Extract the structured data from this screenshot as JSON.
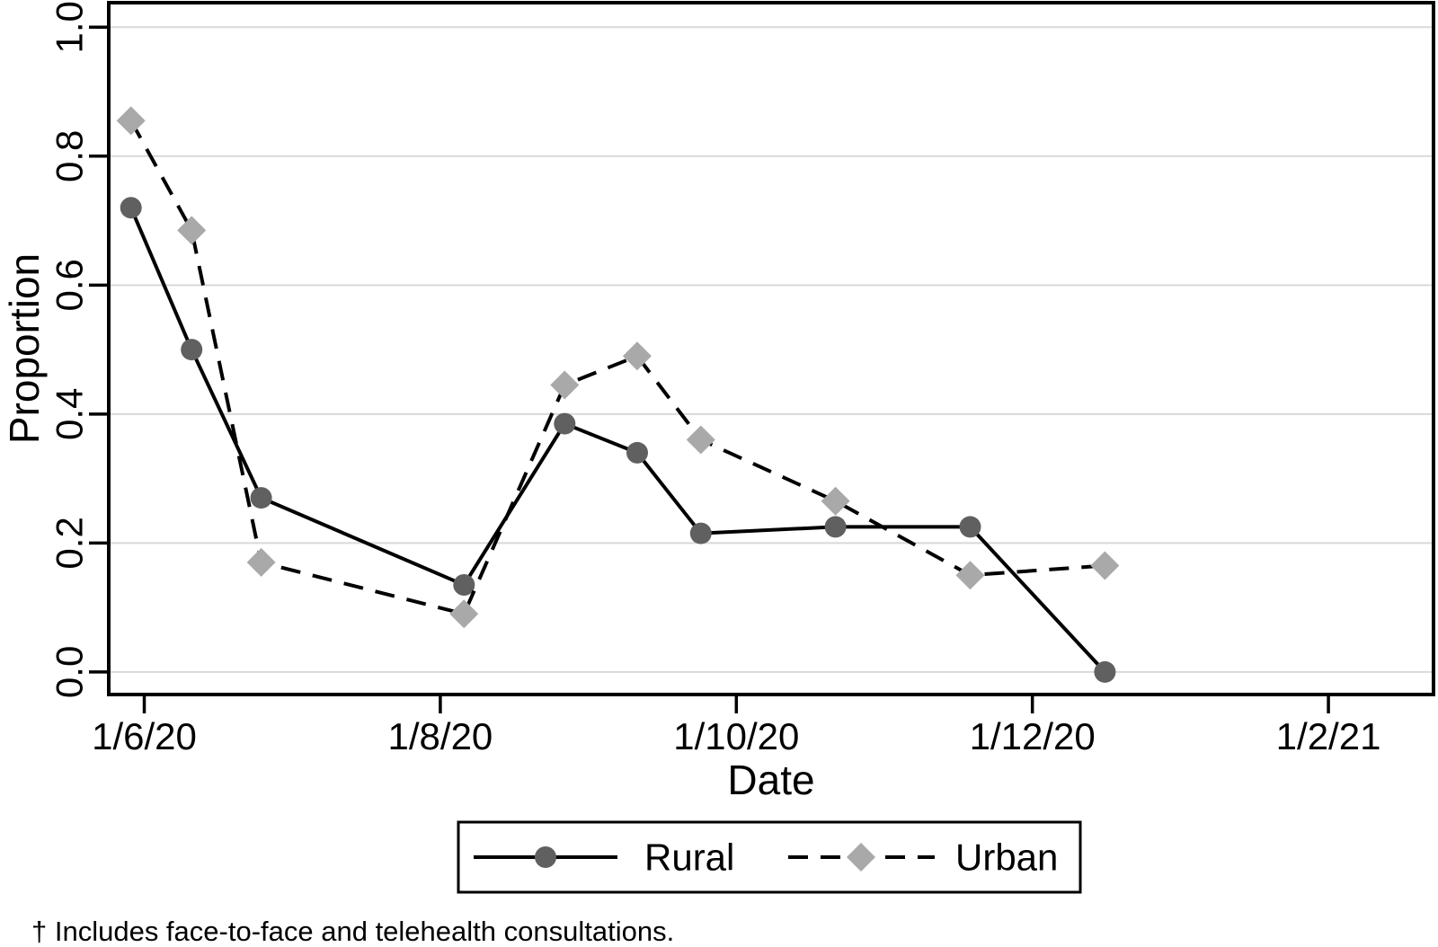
{
  "chart_data": {
    "type": "line",
    "title": "",
    "xlabel": "Date",
    "ylabel": "Proportion",
    "x_tick_labels": [
      "1/6/20",
      "1/8/20",
      "1/10/20",
      "1/12/20",
      "1/2/21"
    ],
    "x_tick_months": [
      0,
      2,
      4,
      6,
      8
    ],
    "xlim_months": [
      -0.24,
      8.71
    ],
    "y_tick_labels": [
      "0.0",
      "0.2",
      "0.4",
      "0.6",
      "0.8",
      "1.0"
    ],
    "y_tick_values": [
      0.0,
      0.2,
      0.4,
      0.6,
      0.8,
      1.0
    ],
    "ylim": [
      -0.035,
      1.038
    ],
    "grid": "horizontal-only",
    "gridline_color": "#d9d9d9",
    "frame_color": "#000000",
    "x_months_from_1_jun_2020": [
      -0.09,
      0.32,
      0.79,
      2.16,
      2.84,
      3.33,
      3.76,
      4.67,
      5.58,
      6.49
    ],
    "series": [
      {
        "name": "Rural",
        "marker": "circle",
        "marker_color": "#606060",
        "line_style": "solid",
        "line_color": "#000000",
        "values": [
          0.72,
          0.5,
          0.27,
          0.135,
          0.385,
          0.34,
          0.215,
          0.225,
          0.225,
          0.0
        ]
      },
      {
        "name": "Urban",
        "marker": "diamond",
        "marker_color": "#a9a9a9",
        "line_style": "dashed",
        "line_color": "#000000",
        "values": [
          0.855,
          0.685,
          0.17,
          0.09,
          0.445,
          0.49,
          0.36,
          0.265,
          0.15,
          0.165
        ]
      }
    ],
    "legend": {
      "position": "bottom-center",
      "boxed": true
    },
    "footnote": "† Includes face-to-face and telehealth consultations."
  }
}
